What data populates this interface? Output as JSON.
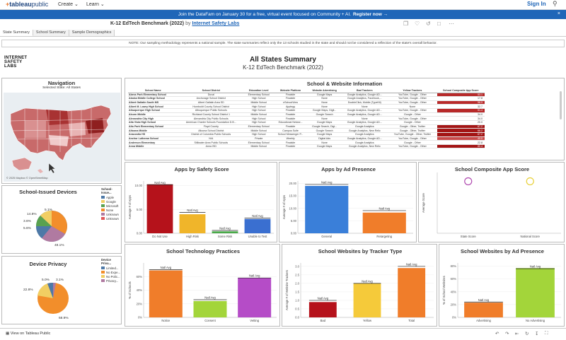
{
  "nav": {
    "logo_main": "tableau",
    "logo_sub": "public",
    "create": "Create ⌄",
    "learn": "Learn ⌄",
    "sign_in": "Sign In",
    "search_icon": "search-icon"
  },
  "banner": {
    "text": "Join the DataFam on January 30 for a free, virtual event focused on Community + AI.",
    "link": "Register now →",
    "close": "×"
  },
  "viz": {
    "title": "K-12 EdTech Benchmark (2022)",
    "by": "by",
    "author": "Internet Safety Labs"
  },
  "tabs": [
    "State Summary",
    "School Summary",
    "Sample Demographics"
  ],
  "note": "NOTE: Our sampling methodology represents a national sample. The state summaries reflect only the 13 schools studied in the state and should not be considered a reflection of the state's overall behavior.",
  "brand": {
    "line1": "INTERNET",
    "line2": "SAFETY",
    "line3": "LABS"
  },
  "header": {
    "title": "All States Summary",
    "subtitle": "K-12 EdTech Benchmark (2022)"
  },
  "navigation": {
    "title": "Navigation",
    "subtitle": "Selected State: All States",
    "attribution": "© 2025 Mapbox  © OpenStreetMap"
  },
  "devices": {
    "title": "School-Issued Devices",
    "legend_title": "School-Issue...",
    "legend": [
      {
        "label": "Apple",
        "color": "#4e79a7"
      },
      {
        "label": "Google",
        "color": "#f1ce63"
      },
      {
        "label": "Microsoft",
        "color": "#59a14f"
      },
      {
        "label": "None",
        "color": "#f28e2b"
      },
      {
        "label": "Unknown",
        "color": "#b07aa1"
      },
      {
        "label": "Unknown",
        "color": "#e15759"
      }
    ],
    "labels": [
      "5.1%",
      "14.8%",
      "3.6%",
      "5.6%",
      "48.1%"
    ]
  },
  "privacy": {
    "title": "Device Privacy",
    "legend_title": "Device Priva...",
    "legend": [
      {
        "label": "Limited...",
        "color": "#4e79a7"
      },
      {
        "label": "No Expe...",
        "color": "#f28e2b"
      },
      {
        "label": "No Polic...",
        "color": "#f1ce63"
      },
      {
        "label": "Privacy...",
        "color": "#b07aa1"
      }
    ],
    "labels": [
      "5.0%",
      "3.1%",
      "22.8%",
      "68.9%"
    ]
  },
  "table": {
    "title": "School & Website Information",
    "headers": [
      "School Name",
      "School District",
      "Education Level",
      "Website Platform",
      "Website Advertising",
      "Bad Trackers",
      "Yellow Trackers",
      "School Composite App Score"
    ],
    "rows": [
      [
        "Abess Park Elementary School",
        "Duval",
        "Elementary School",
        "Finalsite",
        "Google Maps",
        "Google Analytics, Google AD...",
        "YouTube, Google - Other",
        "53.1"
      ],
      [
        "Alaska Middle College School",
        "Anchorage School District",
        "High School",
        "Finalsite",
        "None",
        "Google Analytics, Facebook,...",
        "YouTube, Google - Other",
        "17.8"
      ],
      [
        "Albert Gallatin South MS",
        "Albert Gallatin Area SD",
        "Middle School",
        "eSchoolView",
        "None",
        "DoubleClick, Mobile (TypeKit)",
        "YouTube, Google - Other",
        "58.9"
      ],
      [
        "Albert M. Lowry High School",
        "Humboldt County School District",
        "High School",
        "Apptegy",
        "None",
        "None",
        "None",
        "32.7"
      ],
      [
        "Albuquerque High School",
        "Albuquerque Public Schools",
        "High School",
        "Finalsite",
        "Google Maps, Digit...",
        "Google Analytics, Google AD...",
        "YouTube, Google - Other",
        "51.4"
      ],
      [
        "Alcorn Middle",
        "Richland County School District 1",
        "Middle School",
        "Finalsite",
        "Google Search",
        "Google Analytics, Google AD...",
        "Google - Other",
        "34.0"
      ],
      [
        "Alexandria City High",
        "Alexandria City Public Schools",
        "High School",
        "Finalsite",
        "None",
        "None",
        "YouTube, Google - Other",
        "34.0"
      ],
      [
        "Alta Vista High School",
        "American Charter Schools Foundation D.B...",
        "High School",
        "Educational Networ...",
        "Google Maps",
        "Google Analytics, Google AD...",
        "Google - Other",
        "20.0"
      ],
      [
        "Alto Park Elementary School",
        "Floyd County",
        "Elementary School",
        "Finalsite",
        "Google Search, Digi...",
        "Google Analytics",
        "Google - Other, Twitter",
        "67.2"
      ],
      [
        "Altoona Middle",
        "Altoona School District",
        "Middle School",
        "Campus Suite",
        "Google Search",
        "Google Analytics, New Relic",
        "Google - Other, Twitter",
        "66.2"
      ],
      [
        "Anacostia HS",
        "District of Columbia Public Schools",
        "High School",
        "School Messenger P...",
        "Google Maps",
        "Google Analytics",
        "YouTube, Google - Other, Twitter",
        "67.2"
      ],
      [
        "Anchor Lutheran School",
        "N/A",
        "Private",
        "Weebly",
        "Digital Ads",
        "Google Analytics, Google AD...",
        "YouTube, Google - Other",
        "40.0"
      ],
      [
        "Anderson Elementary",
        "Stillwater Area Public Schools",
        "Elementary School",
        "Finalsite",
        "None",
        "Google Analytics",
        "Google - Other",
        "22.8"
      ],
      [
        "Anna Middle",
        "Anna ISD",
        "Middle School",
        "Finalsite",
        "Google Maps",
        "Google Analytics, New Relic",
        "YouTube, Google - Other",
        "80.4"
      ]
    ]
  },
  "chart_data": [
    {
      "id": "safety",
      "type": "bar",
      "title": "Apps by Safety Score",
      "ylabel": "Average # of Apps",
      "categories": [
        "Do Not Use",
        "High Risk",
        "Some Risk",
        "Unable to Test"
      ],
      "values": [
        10.3,
        4.0,
        0.4,
        3.0
      ],
      "natl_avg": [
        10.2,
        4.4,
        0.6,
        3.2
      ],
      "colors": [
        "#b5121b",
        "#f0b52a",
        "#4aaa4a",
        "#3a6fd0"
      ],
      "ylim": [
        0,
        11
      ],
      "yticks": [
        "0.00",
        "5.00",
        "10.00"
      ],
      "avg_label": "Natl Avg"
    },
    {
      "id": "ad",
      "type": "bar",
      "title": "Apps by Ad Presence",
      "ylabel": "Average # of Apps",
      "categories": [
        "General",
        "Retargeting"
      ],
      "values": [
        19.0,
        8.3
      ],
      "natl_avg": [
        19.6,
        9.1
      ],
      "colors": [
        "#3a7fd9",
        "#f07d2a"
      ],
      "ylim": [
        0,
        21
      ],
      "yticks": [
        "0.00",
        "5.00",
        "10.00",
        "15.00",
        "20.00"
      ],
      "avg_label": "Natl Avg"
    },
    {
      "id": "composite",
      "type": "scatter",
      "title": "School Composite App Score",
      "ylabel": "Average Score",
      "categories": [
        "State Score",
        "National Score"
      ],
      "values": [
        47,
        47
      ],
      "colors": [
        "#b04bb0",
        "#e8d03a"
      ],
      "ylim": [
        0,
        55
      ]
    },
    {
      "id": "practices",
      "type": "bar",
      "title": "School Technology Practices",
      "ylabel": "% of Schools",
      "categories": [
        "Notice",
        "Consent",
        "Vetting"
      ],
      "values": [
        69,
        24,
        58
      ],
      "natl_avg": [
        70,
        26,
        58
      ],
      "colors": [
        "#f07d2a",
        "#a3d53a",
        "#b54cc7"
      ],
      "ylim": [
        0,
        80
      ],
      "yticks": [
        "0%",
        "20%",
        "40%",
        "60%"
      ],
      "avg_label": "Natl Avg"
    },
    {
      "id": "trackers",
      "type": "bar",
      "title": "School Websites by Tracker Type",
      "ylabel": "Average # of Website Trackers",
      "categories": [
        "Bad",
        "Yellow",
        "Total"
      ],
      "values": [
        0.9,
        2.0,
        2.9
      ],
      "natl_avg": [
        1.0,
        2.0,
        3.0
      ],
      "colors": [
        "#b5121b",
        "#f5ca3a",
        "#f07d2a"
      ],
      "ylim": [
        0,
        3.2
      ],
      "yticks": [
        "0.0",
        "0.5",
        "1.0",
        "1.5",
        "2.0",
        "2.5",
        "3.0"
      ],
      "avg_label": "Natl Avg"
    },
    {
      "id": "adpresence",
      "type": "bar",
      "title": "School Websites by Ad Presence",
      "ylabel": "% of School Websites",
      "categories": [
        "Advertising",
        "No Advertising"
      ],
      "values": [
        23,
        77
      ],
      "natl_avg": [
        24,
        76
      ],
      "colors": [
        "#f07d2a",
        "#a3d53a"
      ],
      "ylim": [
        0,
        85
      ],
      "yticks": [
        "0%",
        "20%",
        "40%",
        "60%",
        "80%"
      ],
      "avg_label": "Natl Avg"
    }
  ],
  "footer": {
    "view": "View on Tableau Public"
  }
}
